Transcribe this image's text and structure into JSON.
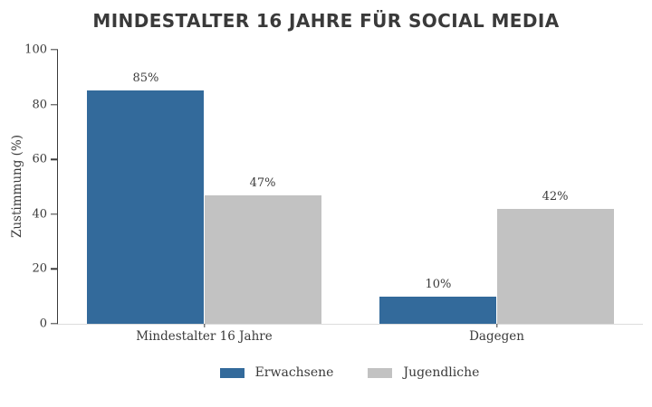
{
  "title": "MINDESTALTER 16 JAHRE FÜR SOCIAL MEDIA",
  "chart_data": {
    "type": "bar",
    "title": "MINDESTALTER 16 JAHRE FÜR SOCIAL MEDIA",
    "categories": [
      "Mindestalter 16 Jahre",
      "Dagegen"
    ],
    "series": [
      {
        "name": "Erwachsene",
        "color": "#336A9B",
        "values": [
          85,
          10
        ]
      },
      {
        "name": "Jugendliche",
        "color": "#C2C2C2",
        "values": [
          47,
          42
        ]
      }
    ],
    "value_labels": [
      [
        "85%",
        "10%"
      ],
      [
        "47%",
        "42%"
      ]
    ],
    "xlabel": "",
    "ylabel": "Zustimmung (%)",
    "ylim": [
      0,
      100
    ],
    "yticks": [
      "0",
      "20",
      "40",
      "60",
      "80",
      "100"
    ],
    "grid": false,
    "legend_position": "bottom",
    "bar_group_width_fraction": 0.8
  },
  "colors": {
    "background": "#ffffff",
    "axis": "#3a3a3a",
    "text": "#3a3a3a",
    "bottom_spine": "#dcdcdc",
    "series_blue": "#336A9B",
    "series_gray": "#C2C2C2"
  }
}
